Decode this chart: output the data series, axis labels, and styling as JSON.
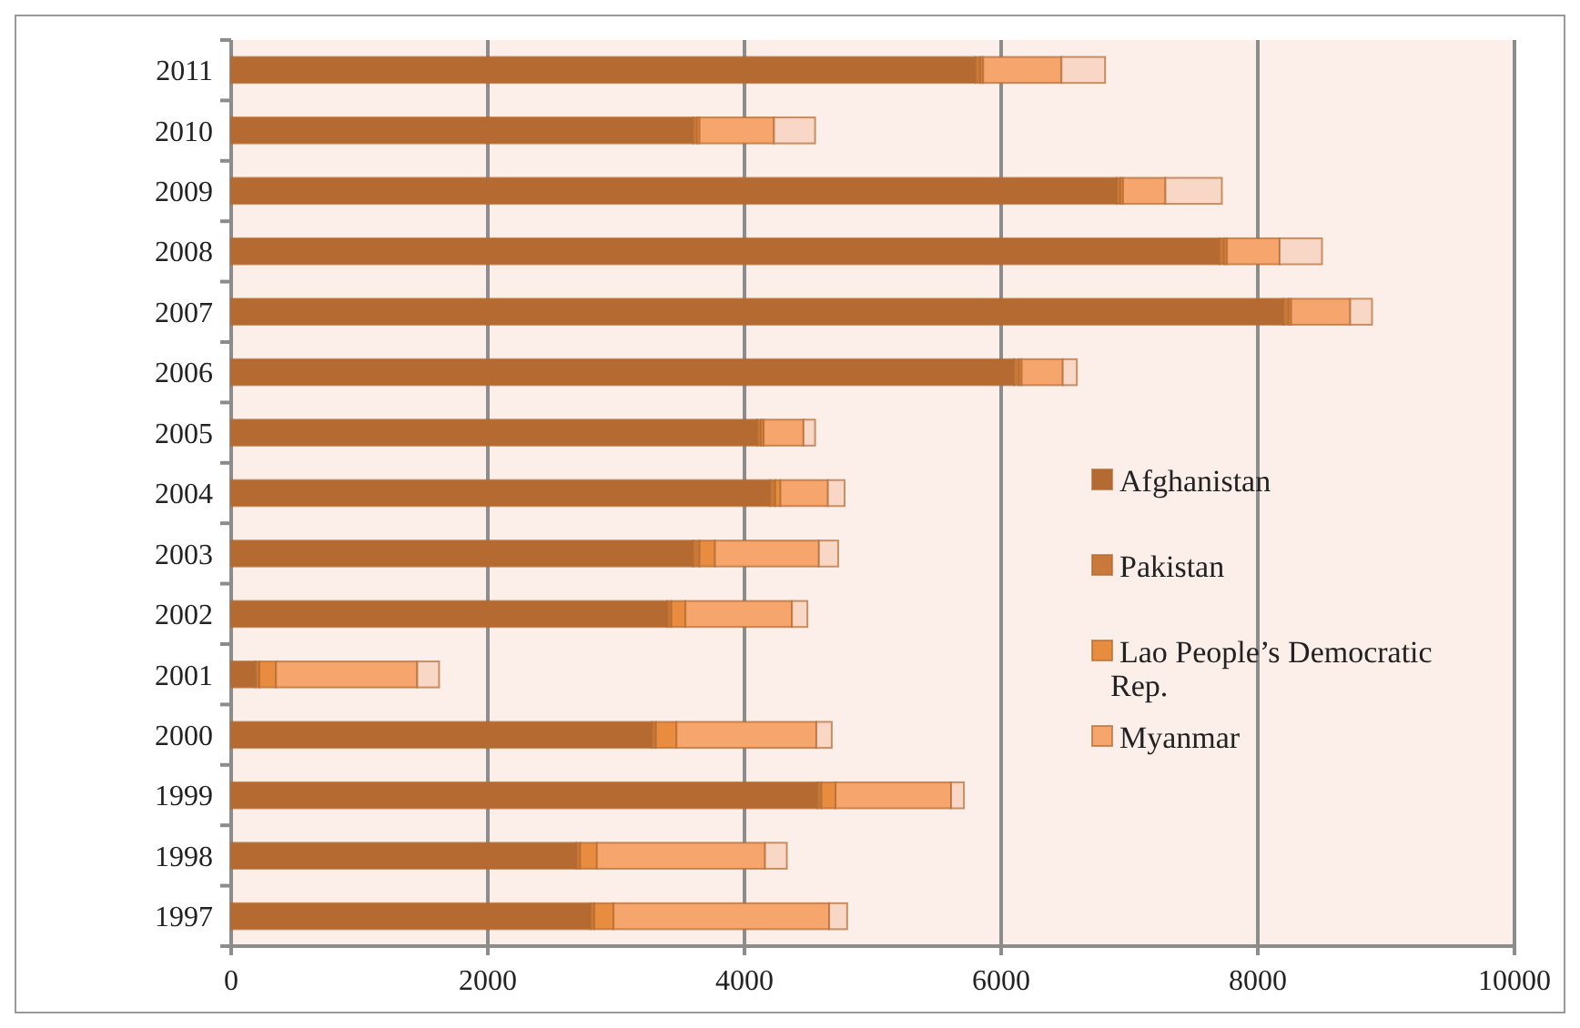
{
  "chart_data": {
    "type": "bar",
    "orientation": "horizontal",
    "stacked": true,
    "categories": [
      "2011",
      "2010",
      "2009",
      "2008",
      "2007",
      "2006",
      "2005",
      "2004",
      "2003",
      "2002",
      "2001",
      "2000",
      "1999",
      "1998",
      "1997"
    ],
    "series": [
      {
        "name": "Afghanistan",
        "color": "#b46a30",
        "values": [
          5800,
          3600,
          6900,
          7700,
          8200,
          6100,
          4100,
          4200,
          3600,
          3400,
          190,
          3280,
          4570,
          2690,
          2800
        ]
      },
      {
        "name": "Pakistan",
        "color": "#c97a3a",
        "values": [
          40,
          30,
          30,
          40,
          40,
          40,
          30,
          40,
          50,
          30,
          30,
          30,
          30,
          30,
          30
        ]
      },
      {
        "name": "Lao People’s Democratic Rep.",
        "color": "#e88c3f",
        "values": [
          20,
          20,
          20,
          20,
          20,
          20,
          20,
          40,
          120,
          110,
          130,
          160,
          110,
          130,
          150
        ]
      },
      {
        "name": "Myanmar",
        "color": "#f6a56c",
        "values": [
          610,
          580,
          330,
          410,
          460,
          320,
          310,
          370,
          810,
          830,
          1100,
          1090,
          900,
          1310,
          1680
        ]
      },
      {
        "color": "#f9d7c6",
        "values": [
          340,
          320,
          440,
          330,
          170,
          110,
          90,
          130,
          150,
          120,
          170,
          120,
          100,
          170,
          140
        ]
      }
    ],
    "xlim": [
      0,
      10000
    ],
    "xticks": [
      0,
      2000,
      4000,
      6000,
      8000,
      10000
    ],
    "grid": "x",
    "legend": "right"
  }
}
